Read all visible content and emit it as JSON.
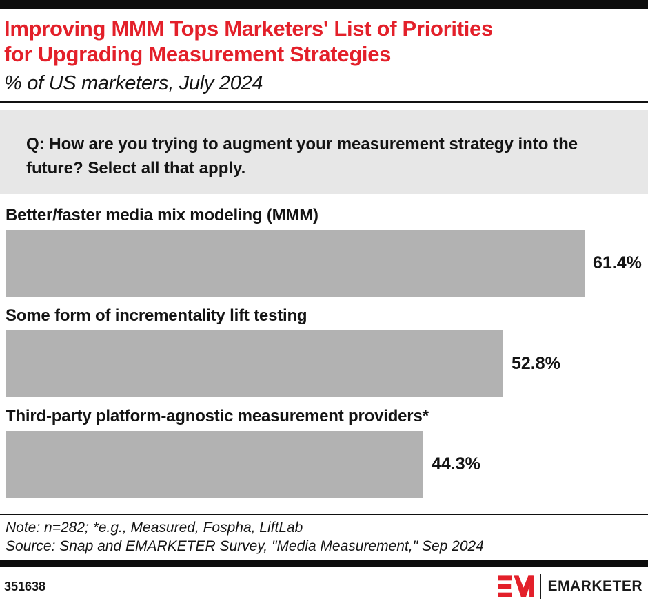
{
  "colors": {
    "accent_red": "#e3202a",
    "bar_gray": "#b2b2b2",
    "question_bg": "#e7e7e7",
    "bar_black": "#0d0d0d"
  },
  "header": {
    "title_line1": "Improving MMM Tops Marketers' List of Priorities",
    "title_line2": "for Upgrading Measurement Strategies",
    "subtitle": "% of US marketers, July 2024"
  },
  "question": "Q: How are you trying to augment your measurement strategy into the future? Select all that apply.",
  "chart_data": {
    "type": "bar",
    "orientation": "horizontal",
    "title": "Improving MMM Tops Marketers' List of Priorities for Upgrading Measurement Strategies",
    "subtitle": "% of US marketers, July 2024",
    "categories": [
      "Better/faster media mix modeling (MMM)",
      "Some form of incrementality lift testing",
      "Third-party platform-agnostic measurement providers*"
    ],
    "values": [
      61.4,
      52.8,
      44.3
    ],
    "value_labels": [
      "61.4%",
      "52.8%",
      "44.3%"
    ],
    "xlabel": "",
    "ylabel": "",
    "xlim": [
      0,
      65
    ],
    "grid": false,
    "legend": false,
    "bar_color": "#b2b2b2"
  },
  "footer": {
    "note": "Note: n=282; *e.g., Measured, Fospha, LiftLab",
    "source": "Source: Snap and EMARKETER Survey, \"Media Measurement,\" Sep 2024",
    "chart_id": "351638",
    "brand_name": "EMARKETER"
  }
}
